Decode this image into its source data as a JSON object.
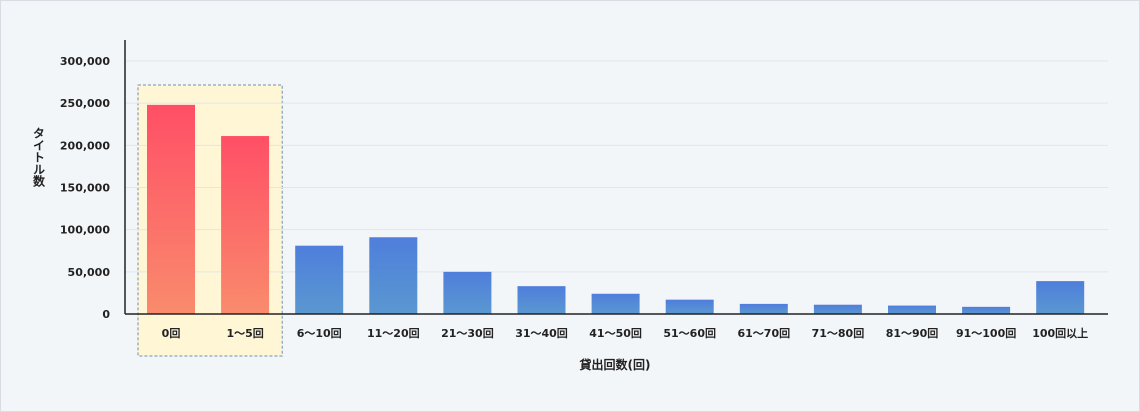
{
  "chart_data": {
    "type": "bar",
    "title": "",
    "xlabel": "貸出回数(回)",
    "ylabel": "タイトル数",
    "ylim": [
      0,
      300000
    ],
    "yticks": [
      "0",
      "50,000",
      "100,000",
      "150,000",
      "200,000",
      "250,000",
      "300,000"
    ],
    "ytick_values": [
      0,
      50000,
      100000,
      150000,
      200000,
      250000,
      300000
    ],
    "categories": [
      "0回",
      "1〜5回",
      "6〜10回",
      "11〜20回",
      "21〜30回",
      "31〜40回",
      "41〜50回",
      "51〜60回",
      "61〜70回",
      "71〜80回",
      "81〜90回",
      "91〜100回",
      "100回以上"
    ],
    "values": [
      248000,
      211000,
      81000,
      91000,
      50000,
      33000,
      24000,
      17000,
      12000,
      11000,
      10000,
      8500,
      39000
    ],
    "highlighted_categories": [
      "0回",
      "1〜5回"
    ],
    "grid": true,
    "colors": {
      "highlight_top": "#ff4f66",
      "highlight_bottom": "#f98b6c",
      "normal_top": "#4f7edc",
      "normal_bottom": "#5a98d0",
      "highlight_box_fill": "#fff6d6",
      "highlight_box_border": "#6f8fae",
      "grid": "#e1e6eb",
      "axis": "#222222"
    }
  }
}
